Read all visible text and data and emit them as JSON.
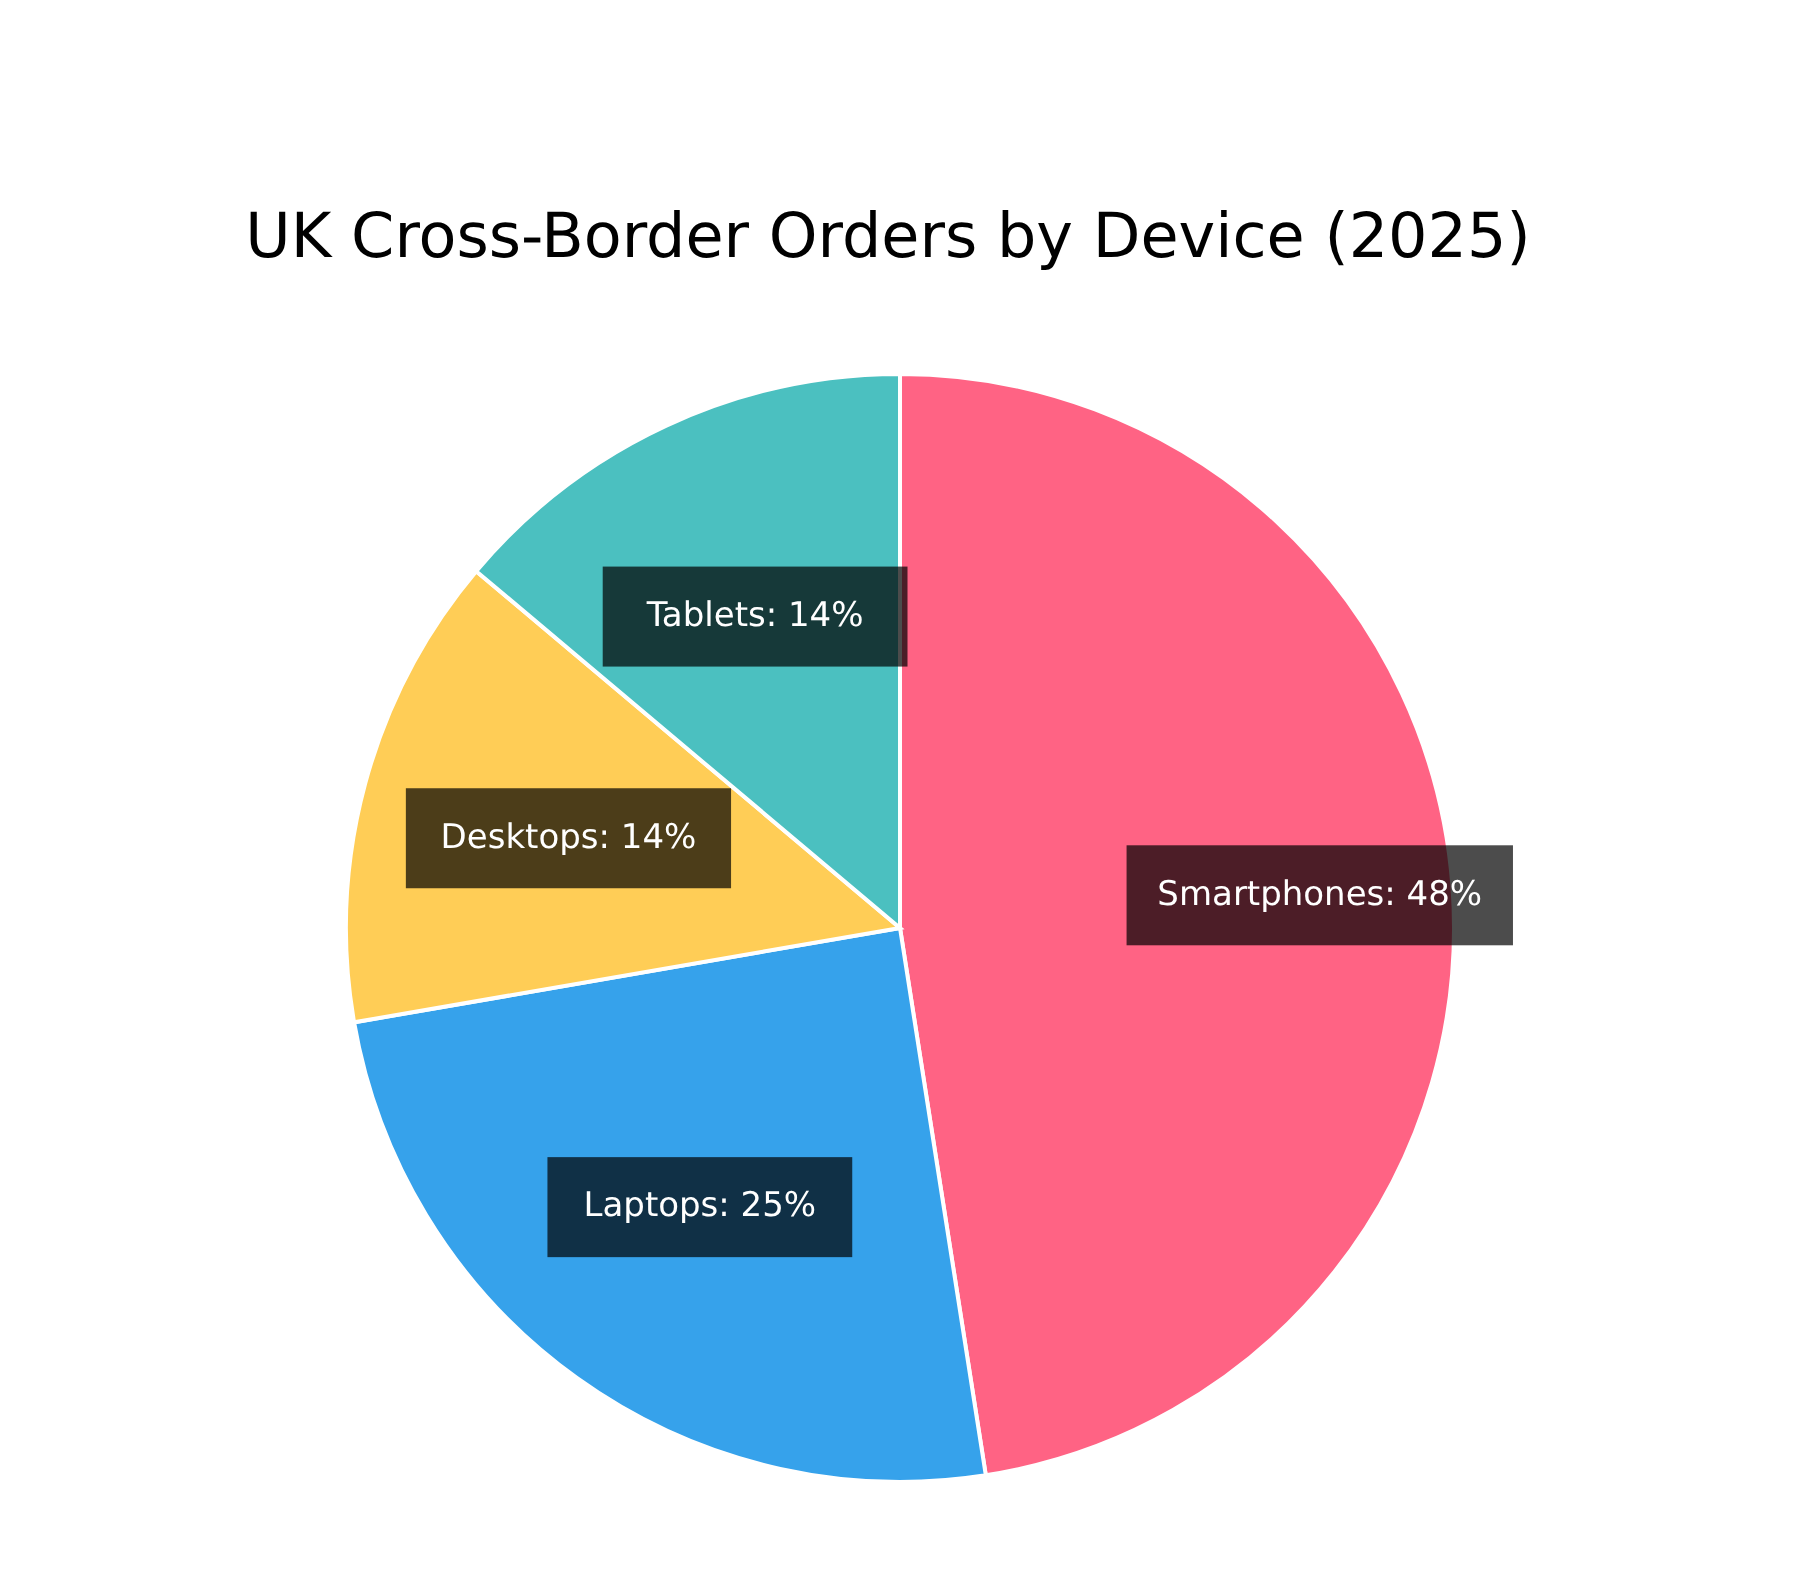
{
  "chart_data": {
    "type": "pie",
    "title": "UK Cross-Border Orders by Device (2025)",
    "categories": [
      "Smartphones",
      "Laptops",
      "Desktops",
      "Tablets"
    ],
    "values": [
      48,
      25,
      14,
      14
    ],
    "colors": [
      "#ff6384",
      "#36a2eb",
      "#ffcd56",
      "#4bc0c0"
    ],
    "value_labels": [
      "48%",
      "25%",
      "14%",
      "14%"
    ],
    "legend": false
  }
}
